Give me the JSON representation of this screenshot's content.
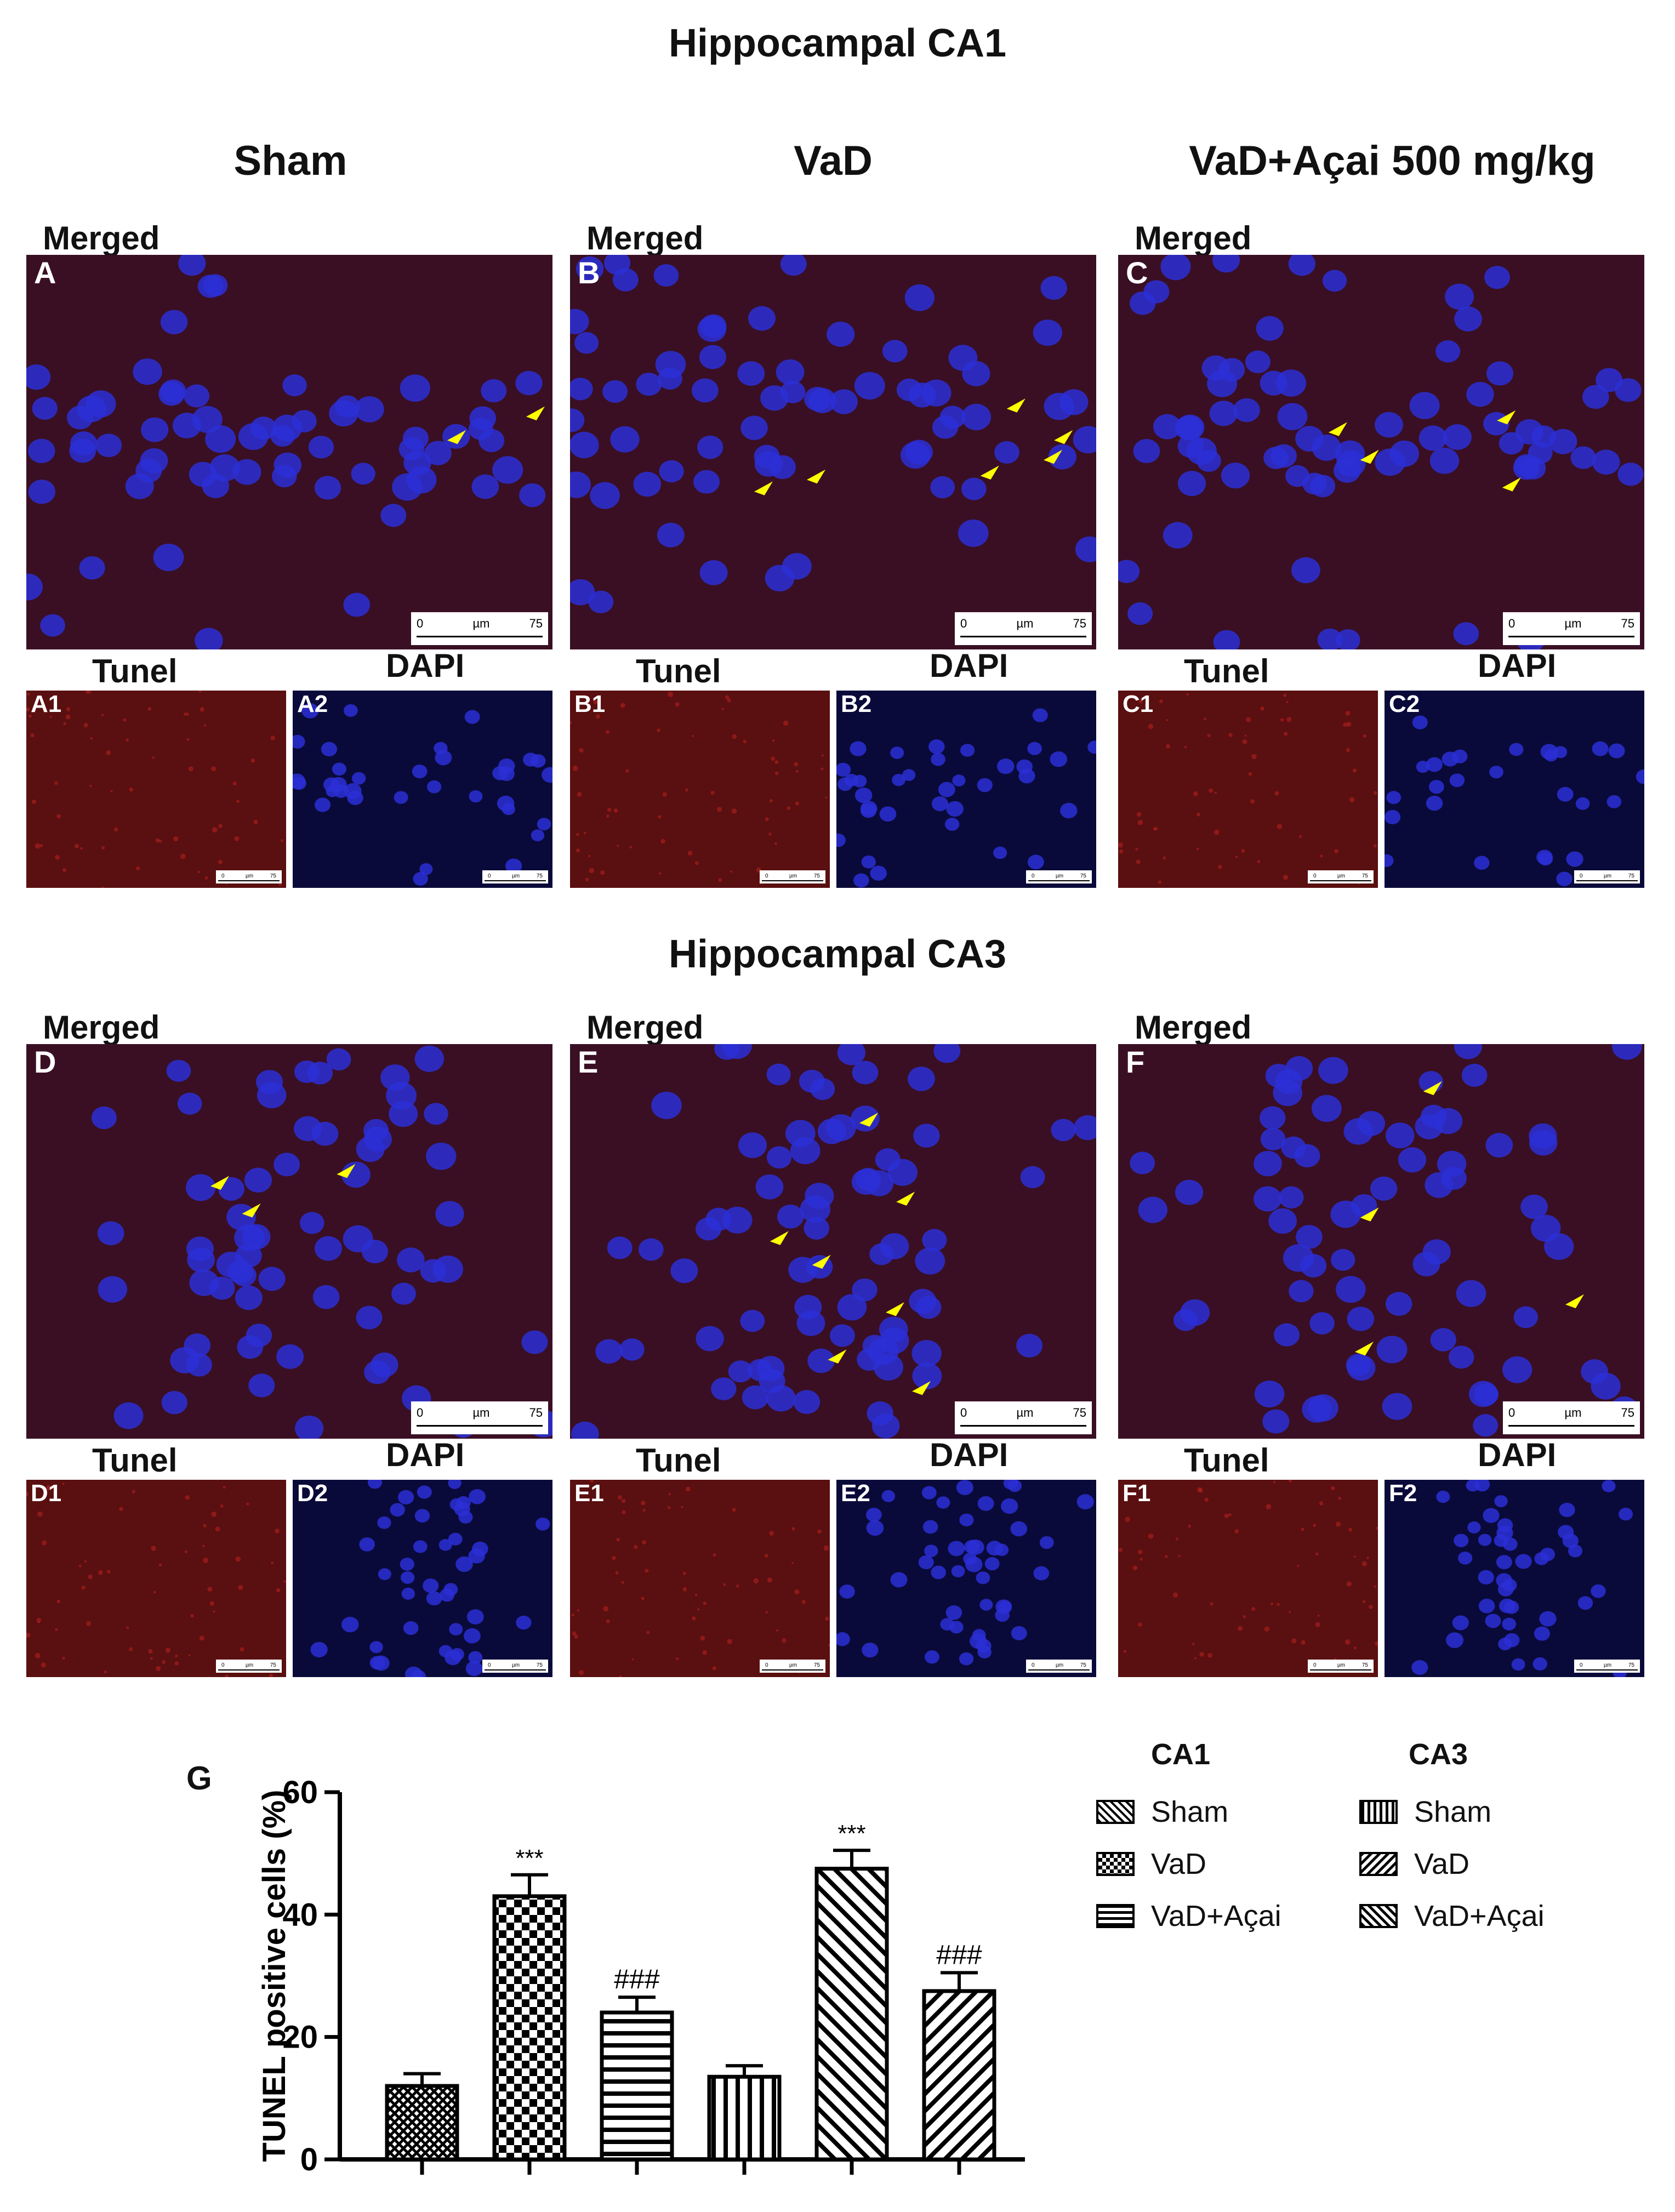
{
  "sections": {
    "ca1_title": "Hippocampal CA1",
    "ca3_title": "Hippocampal CA3"
  },
  "columns": [
    "Sham",
    "VaD",
    "VaD+Açai 500 mg/kg"
  ],
  "labels": {
    "merged": "Merged",
    "tunel": "Tunel",
    "dapi": "DAPI"
  },
  "panels": {
    "A": "A",
    "B": "B",
    "C": "C",
    "D": "D",
    "E": "E",
    "F": "F",
    "A1": "A1",
    "A2": "A2",
    "B1": "B1",
    "B2": "B2",
    "C1": "C1",
    "C2": "C2",
    "D1": "D1",
    "D2": "D2",
    "E1": "E1",
    "E2": "E2",
    "F1": "F1",
    "F2": "F2",
    "G": "G"
  },
  "scalebar": {
    "start": "0",
    "unit": "µm",
    "end": "75"
  },
  "colors": {
    "tunel_red": "#7a1414",
    "dapi_blue": "#2b2fd6",
    "arrow_yellow": "#ffff00"
  },
  "chart_data": {
    "type": "bar",
    "ylabel": "TUNEL positive cells (%)",
    "ylim": [
      0,
      60
    ],
    "yticks": [
      0,
      20,
      40,
      60
    ],
    "groups": [
      "CA1",
      "CA3"
    ],
    "categories": [
      "Sham",
      "VaD",
      "VaD+Açai",
      "Sham",
      "VaD",
      "VaD+Açai"
    ],
    "series": [
      {
        "group": "CA1",
        "name": "Sham",
        "value": 12.0,
        "error": 2.0,
        "pattern": "crosshatch",
        "annotation": ""
      },
      {
        "group": "CA1",
        "name": "VaD",
        "value": 43.0,
        "error": 3.5,
        "pattern": "checker",
        "annotation": "***"
      },
      {
        "group": "CA1",
        "name": "VaD+Açai",
        "value": 24.0,
        "error": 2.5,
        "pattern": "horizontal",
        "annotation": "###"
      },
      {
        "group": "CA3",
        "name": "Sham",
        "value": 13.5,
        "error": 1.8,
        "pattern": "vertical",
        "annotation": ""
      },
      {
        "group": "CA3",
        "name": "VaD",
        "value": 47.5,
        "error": 3.0,
        "pattern": "diag-right",
        "annotation": "***"
      },
      {
        "group": "CA3",
        "name": "VaD+Açai",
        "value": 27.5,
        "error": 3.0,
        "pattern": "diag-left",
        "annotation": "###"
      }
    ],
    "legend": {
      "ca1_head": "CA1",
      "ca3_head": "CA3",
      "ca1": [
        "Sham",
        "VaD",
        "VaD+Açai"
      ],
      "ca3": [
        "Sham",
        "VaD",
        "VaD+Açai"
      ]
    }
  }
}
